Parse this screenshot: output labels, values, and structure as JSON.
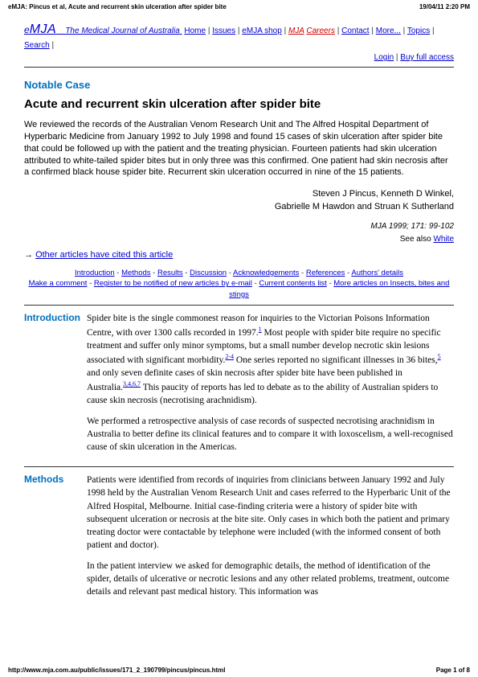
{
  "header": {
    "left": "eMJA: Pincus et al, Acute and recurrent skin ulceration after spider bite",
    "right": "19/04/11 2:20 PM"
  },
  "journal": {
    "emja": "MJA",
    "subtitle": "The Medical Journal of Australia"
  },
  "nav": {
    "home": "Home",
    "issues": "Issues",
    "shop": "eMJA shop",
    "mja": "MJA",
    "careers": "Careers",
    "contact": "Contact",
    "more": "More...",
    "topics": "Topics",
    "search": "Search",
    "login": "Login",
    "buy": "Buy full access"
  },
  "article": {
    "sectionLabel": "Notable Case",
    "title": "Acute and recurrent skin ulceration after spider bite",
    "abstract": "We reviewed the records of the Australian Venom Research Unit and The Alfred Hospital Department of Hyperbaric Medicine from January 1992 to July 1998 and found 15 cases of skin ulceration after spider bite that could be followed up with the patient and the treating physician. Fourteen patients had skin ulceration attributed to white-tailed spider bites but in only three was this confirmed. One patient had skin necrosis after a confirmed black house spider bite. Recurrent skin ulceration occurred in nine of the 15 patients.",
    "authors_line1": "Steven J Pincus, Kenneth D Winkel,",
    "authors_line2": "Gabrielle M Hawdon and Struan K Sutherland",
    "citation": "MJA 1999; 171: 99-102",
    "seeAlso": "See also ",
    "seeAlsoLink": "White",
    "citedArrow": "→ ",
    "citedLink": "Other articles have cited this article"
  },
  "toc": {
    "intro": "Introduction",
    "methods": "Methods",
    "results": "Results",
    "discussion": "Discussion",
    "acks": "Acknowledgements",
    "refs": "References",
    "authors": "Authors' details",
    "comment": "Make a comment",
    "notify": "Register to be notified of new articles by e-mail",
    "contents": "Current contents list",
    "moreArticles": "More articles on Insects, bites and stings"
  },
  "intro": {
    "label": "Introduction",
    "p1a": "Spider bite is the single commonest reason for inquiries to the Victorian Poisons Information Centre, with over 1300 calls recorded in 1997.",
    "ref1": "1",
    "p1b": " Most people with spider bite require no specific treatment and suffer only minor symptoms, but a small number develop necrotic skin lesions associated with significant morbidity.",
    "ref2": "2-4",
    "p1c": " One series reported no significant illnesses in 36 bites,",
    "ref3": "5",
    "p1d": " and only seven definite cases of skin necrosis after spider bite have been published in Australia.",
    "ref4": "3,4,6,7",
    "p1e": " This paucity of reports has led to debate as to the ability of Australian spiders to cause skin necrosis (necrotising arachnidism).",
    "p2": "We performed a retrospective analysis of case records of suspected necrotising arachnidism in Australia to better define its clinical features and to compare it with loxoscelism, a well-recognised cause of skin ulceration in the Americas."
  },
  "methods": {
    "label": "Methods",
    "p1": "Patients were identified from records of inquiries from clinicians between January 1992 and July 1998 held by the Australian Venom Research Unit and cases referred to the Hyperbaric Unit of the Alfred Hospital, Melbourne. Initial case-finding criteria were a history of spider bite with subsequent ulceration or necrosis at the bite site. Only cases in which both the patient and primary treating doctor were contactable by telephone were included (with the informed consent of both patient and doctor).",
    "p2": "In the patient interview we asked for demographic details, the method of identification of the spider, details of ulcerative or necrotic lesions and any other related problems, treatment, outcome details and relevant past medical history. This information was"
  },
  "footer": {
    "url": "http://www.mja.com.au/public/issues/171_2_190799/pincus/pincus.html",
    "page": "Page 1 of 8"
  }
}
